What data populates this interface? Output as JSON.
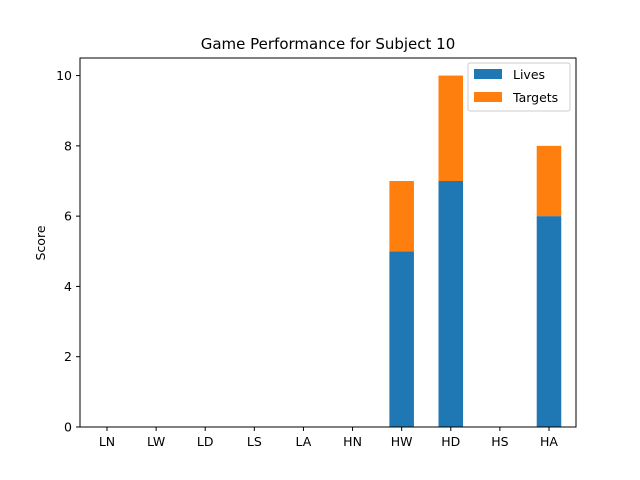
{
  "chart_data": {
    "type": "bar",
    "stacked": true,
    "title": "Game Performance for Subject 10",
    "xlabel": "",
    "ylabel": "Score",
    "categories": [
      "LN",
      "LW",
      "LD",
      "LS",
      "LA",
      "HN",
      "HW",
      "HD",
      "HS",
      "HA"
    ],
    "series": [
      {
        "name": "Lives",
        "color": "#1f77b4",
        "values": [
          0,
          0,
          0,
          0,
          0,
          0,
          5,
          7,
          0,
          6
        ]
      },
      {
        "name": "Targets",
        "color": "#ff7f0e",
        "values": [
          0,
          0,
          0,
          0,
          0,
          0,
          2,
          3,
          0,
          2
        ]
      }
    ],
    "ylim": [
      0,
      10.5
    ],
    "yticks": [
      0,
      2,
      4,
      6,
      8,
      10
    ],
    "legend": "top-right",
    "grid": false
  }
}
